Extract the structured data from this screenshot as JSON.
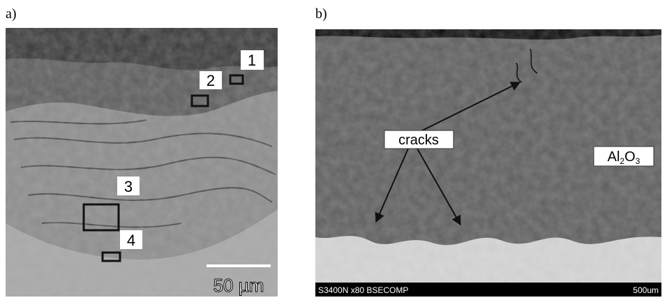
{
  "panels": [
    {
      "label": "a)",
      "markers": [
        "1",
        "2",
        "3",
        "4"
      ],
      "scale_bar": "50 µm"
    },
    {
      "label": "b)",
      "annotations": [
        "cracks"
      ],
      "phase_label": [
        "Al",
        "2",
        "O",
        "3"
      ],
      "footer": {
        "instrument": "S3400N x80 BSECOMP",
        "scale": "500um"
      }
    }
  ]
}
